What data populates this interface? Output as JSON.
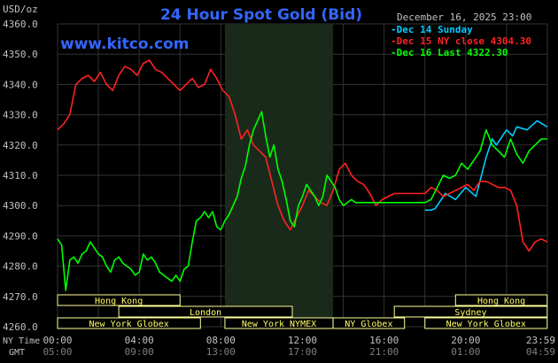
{
  "chart_data": {
    "type": "line",
    "title": "24 Hour Spot Gold (Bid)",
    "unit": "USD/oz",
    "watermark": "www.kitco.com",
    "date_label": "December 16, 2025 23:00",
    "ylim": [
      4260,
      4360
    ],
    "y_ticks": [
      "4360.0",
      "4350.0",
      "4340.0",
      "4330.0",
      "4320.0",
      "4310.0",
      "4300.0",
      "4290.0",
      "4280.0",
      "4270.0",
      "4260.0"
    ],
    "x_axis_label_ny": "NY Time",
    "x_axis_label_gmt": "GMT",
    "x_ticks_ny": [
      "00:00",
      "04:00",
      "08:00",
      "12:00",
      "16:00",
      "20:00",
      "23:59"
    ],
    "x_ticks_gmt": [
      "05:00",
      "09:00",
      "13:00",
      "17:00",
      "21:00",
      "01:00",
      "04:59"
    ],
    "legend": [
      {
        "label": "Dec 14 Sunday",
        "color": "#00ccff"
      },
      {
        "label": "Dec 15 NY close 4304.30",
        "color": "#ff2222"
      },
      {
        "label": "Dec 16 Last 4322.30",
        "color": "#00ff00"
      }
    ],
    "sessions": [
      {
        "label": "Hong Kong",
        "start": 0.0,
        "end": 6.0,
        "row": 0
      },
      {
        "label": "Hong Kong",
        "start": 19.5,
        "end": 23.99,
        "row": 0
      },
      {
        "label": "London",
        "start": 3.0,
        "end": 11.5,
        "row": 1
      },
      {
        "label": "Sydney",
        "start": 16.5,
        "end": 23.99,
        "row": 1
      },
      {
        "label": "New York Globex",
        "start": 0.0,
        "end": 7.0,
        "row": 2
      },
      {
        "label": "New York NYMEX",
        "start": 8.2,
        "end": 13.5,
        "row": 2
      },
      {
        "label": "NY Globex",
        "start": 13.5,
        "end": 17.0,
        "row": 2
      },
      {
        "label": "New York Globex",
        "start": 18.0,
        "end": 23.99,
        "row": 2
      }
    ],
    "highlight_hours": [
      8.2,
      13.5
    ],
    "series": [
      {
        "name": "Dec 14 Sunday",
        "color": "#00ccff",
        "x": [
          18.0,
          18.3,
          18.5,
          19.0,
          19.5,
          20.0,
          20.5,
          21.0,
          21.3,
          21.5,
          22.0,
          22.3,
          22.5,
          23.0,
          23.5,
          23.99
        ],
        "y": [
          4298.5,
          4298.5,
          4299,
          4304,
          4302,
          4306,
          4303,
          4316,
          4322,
          4320,
          4325,
          4323,
          4326,
          4325,
          4328,
          4326
        ]
      },
      {
        "name": "Dec 15 NY close 4304.30",
        "color": "#ff2222",
        "x": [
          0.0,
          0.3,
          0.6,
          0.9,
          1.2,
          1.5,
          1.8,
          2.1,
          2.4,
          2.7,
          3.0,
          3.3,
          3.6,
          3.9,
          4.2,
          4.5,
          4.8,
          5.1,
          5.4,
          5.7,
          6.0,
          6.3,
          6.6,
          6.9,
          7.2,
          7.5,
          7.8,
          8.1,
          8.4,
          8.7,
          9.0,
          9.3,
          9.6,
          9.9,
          10.2,
          10.5,
          10.8,
          11.1,
          11.4,
          11.7,
          12.0,
          12.3,
          12.6,
          12.9,
          13.2,
          13.5,
          13.8,
          14.1,
          14.4,
          14.7,
          15.0,
          15.3,
          15.6,
          15.9,
          16.2,
          16.5,
          16.8,
          17.1,
          17.4,
          17.7,
          18.0,
          18.3,
          18.6,
          18.9,
          19.2,
          19.5,
          19.8,
          20.1,
          20.4,
          20.7,
          21.0,
          21.3,
          21.6,
          21.9,
          22.2,
          22.5,
          22.8,
          23.1,
          23.4,
          23.7,
          23.99
        ],
        "y": [
          4325,
          4327,
          4330,
          4340,
          4342,
          4343,
          4341,
          4344,
          4340,
          4338,
          4343,
          4346,
          4345,
          4343,
          4347,
          4348,
          4345,
          4344,
          4342,
          4340,
          4338,
          4340,
          4342,
          4339,
          4340,
          4345,
          4342,
          4338,
          4336,
          4330,
          4322,
          4325,
          4320,
          4318,
          4316,
          4308,
          4300,
          4295,
          4292,
          4296,
          4300,
          4305,
          4303,
          4301,
          4300,
          4305,
          4312,
          4314,
          4310,
          4308,
          4307,
          4304,
          4300,
          4302,
          4303,
          4304,
          4304,
          4304,
          4304,
          4304,
          4304,
          4306,
          4305,
          4303,
          4304,
          4305,
          4306,
          4307,
          4305,
          4308,
          4308,
          4307,
          4306,
          4306,
          4305,
          4300,
          4288,
          4285,
          4288,
          4289,
          4288
        ]
      },
      {
        "name": "Dec 16 Last 4322.30",
        "color": "#00ff00",
        "x": [
          0.0,
          0.2,
          0.4,
          0.6,
          0.8,
          1.0,
          1.2,
          1.4,
          1.6,
          1.8,
          2.0,
          2.2,
          2.4,
          2.6,
          2.8,
          3.0,
          3.2,
          3.4,
          3.6,
          3.8,
          4.0,
          4.2,
          4.4,
          4.6,
          4.8,
          5.0,
          5.2,
          5.4,
          5.6,
          5.8,
          6.0,
          6.2,
          6.4,
          6.6,
          6.8,
          7.0,
          7.2,
          7.4,
          7.6,
          7.8,
          8.0,
          8.2,
          8.4,
          8.6,
          8.8,
          9.0,
          9.2,
          9.4,
          9.6,
          9.8,
          10.0,
          10.2,
          10.4,
          10.6,
          10.8,
          11.0,
          11.2,
          11.4,
          11.6,
          11.8,
          12.0,
          12.2,
          12.4,
          12.6,
          12.8,
          13.0,
          13.2,
          13.4,
          13.6,
          13.8,
          14.0,
          14.2,
          14.4,
          14.6,
          14.8,
          15.0,
          15.2,
          15.4,
          15.6,
          15.8,
          16.0,
          16.5,
          17.0,
          17.5,
          18.0,
          18.3,
          18.6,
          18.9,
          19.2,
          19.5,
          19.8,
          20.1,
          20.4,
          20.7,
          21.0,
          21.3,
          21.6,
          21.9,
          22.2,
          22.5,
          22.8,
          23.1,
          23.4,
          23.7,
          23.99
        ],
        "y": [
          4289,
          4287,
          4272,
          4282,
          4283,
          4281,
          4284,
          4285,
          4288,
          4286,
          4284,
          4283,
          4280,
          4278,
          4282,
          4283,
          4281,
          4280,
          4279,
          4277,
          4278,
          4284,
          4282,
          4283,
          4281,
          4278,
          4277,
          4276,
          4275,
          4277,
          4275,
          4279,
          4280,
          4288,
          4295,
          4296,
          4298,
          4296,
          4298,
          4293,
          4292,
          4295,
          4297,
          4300,
          4303,
          4309,
          4313,
          4320,
          4325,
          4328,
          4331,
          4323,
          4316,
          4320,
          4312,
          4308,
          4302,
          4295,
          4293,
          4300,
          4303,
          4307,
          4305,
          4303,
          4300,
          4303,
          4310,
          4308,
          4306,
          4302,
          4300,
          4301,
          4302,
          4301,
          4301,
          4301,
          4301,
          4301,
          4301,
          4301,
          4301,
          4301,
          4301,
          4301,
          4301,
          4302,
          4306,
          4310,
          4309,
          4310,
          4314,
          4312,
          4315,
          4318,
          4325,
          4320,
          4318,
          4316,
          4322,
          4317,
          4314,
          4318,
          4320,
          4322,
          4322
        ]
      }
    ],
    "grid": true,
    "legend_position": "top-right"
  }
}
